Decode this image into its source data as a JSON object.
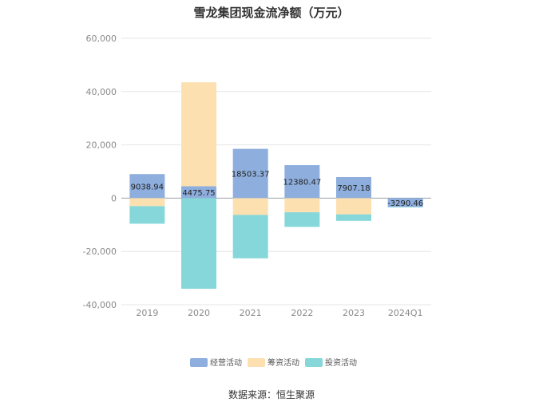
{
  "title": "雪龙集团现金流净额（万元）",
  "source": "数据来源：恒生聚源",
  "chart_data": {
    "type": "bar",
    "stacked": true,
    "title": "雪龙集团现金流净额（万元）",
    "categories": [
      "2019",
      "2020",
      "2021",
      "2022",
      "2023",
      "2024Q1"
    ],
    "ylim": [
      -40000,
      60000
    ],
    "yticks": [
      60000,
      40000,
      20000,
      0,
      -20000,
      -40000
    ],
    "ytick_labels": [
      "60,000",
      "40,000",
      "20,000",
      "0",
      "-20,000",
      "-40,000"
    ],
    "grid": true,
    "legend_position": "bottom",
    "series": [
      {
        "name": "经营活动",
        "color": "#8eaedd",
        "values": [
          9038.94,
          4475.75,
          18503.37,
          12380.47,
          7907.18,
          -3290.46
        ],
        "labels": [
          "9038.94",
          "4475.75",
          "18503.37",
          "12380.47",
          "7907.18",
          "-3290.46"
        ]
      },
      {
        "name": "筹资活动",
        "color": "#fde0b0",
        "values": [
          -3000,
          39000,
          -6300,
          -5300,
          -6100,
          0
        ]
      },
      {
        "name": "投资活动",
        "color": "#86d7d9",
        "values": [
          -6600,
          -34000,
          -16300,
          -5500,
          -2400,
          -200
        ]
      }
    ]
  }
}
